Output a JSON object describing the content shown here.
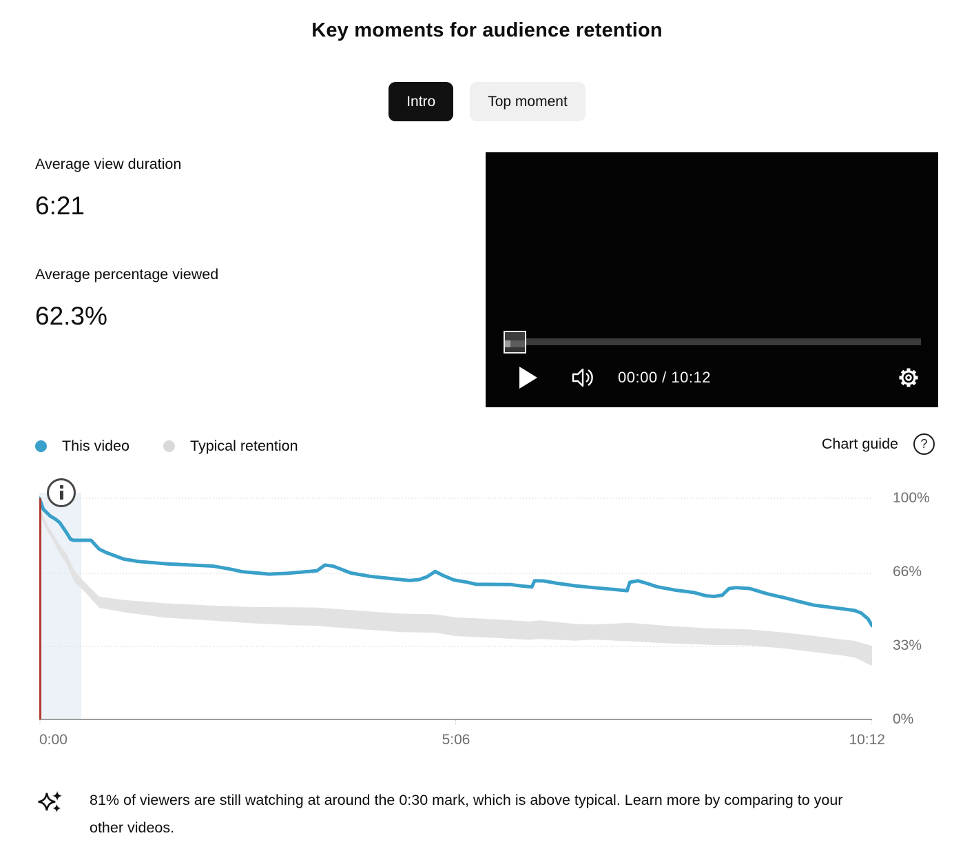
{
  "page": {
    "title": "Key moments for audience retention"
  },
  "chips": {
    "intro": "Intro",
    "top_moment": "Top moment"
  },
  "stats": {
    "duration_label": "Average view duration",
    "duration_value": "6:21",
    "percent_label": "Average percentage viewed",
    "percent_value": "62.3%"
  },
  "player": {
    "time": "00:00 / 10:12"
  },
  "legend": {
    "this_video": "This video",
    "typical": "Typical retention",
    "chart_guide": "Chart guide",
    "help_glyph": "?"
  },
  "insight": {
    "text": "81% of viewers are still watching at around the 0:30 mark, which is above typical. Learn more by comparing to your other videos."
  },
  "colors": {
    "accent_blue": "#38a0c9",
    "band_gray": "#e2e2e2",
    "marker_red": "#b0392e",
    "region_blue": "#ecf2f7",
    "gridline": "#e0e0e0",
    "axis": "#9c9c9c"
  },
  "chart_data": {
    "type": "line",
    "title": "Audience retention",
    "x_axis": {
      "ticks": [
        "0:00",
        "5:06",
        "10:12"
      ],
      "tick_seconds": [
        0,
        306,
        612
      ],
      "range_seconds": [
        0,
        612
      ]
    },
    "y_axis": {
      "ticks": [
        "100%",
        "66%",
        "33%",
        "0%"
      ],
      "grid_percents": [
        100,
        66,
        33
      ],
      "range": [
        0,
        100
      ]
    },
    "grid": true,
    "legend_position": "top-left",
    "annotations": {
      "intro_marker_time": 0,
      "intro_shaded_region_seconds": [
        0,
        31
      ],
      "callout": "81% retention at 0:30"
    },
    "series": [
      {
        "name": "This video",
        "color": "#38a0c9",
        "points": [
          [
            0,
            100
          ],
          [
            3,
            95
          ],
          [
            8,
            92
          ],
          [
            12,
            90.5
          ],
          [
            15,
            89
          ],
          [
            20,
            84.5
          ],
          [
            23,
            81.5
          ],
          [
            25,
            81
          ],
          [
            38,
            81
          ],
          [
            44,
            77
          ],
          [
            49,
            75.5
          ],
          [
            62,
            72.5
          ],
          [
            73,
            71.4
          ],
          [
            95,
            70.3
          ],
          [
            112,
            69.8
          ],
          [
            128,
            69.3
          ],
          [
            140,
            68
          ],
          [
            149,
            66.8
          ],
          [
            160,
            66.2
          ],
          [
            169,
            65.7
          ],
          [
            183,
            66.1
          ],
          [
            204,
            67.2
          ],
          [
            210,
            69.8
          ],
          [
            216,
            69.3
          ],
          [
            229,
            66.2
          ],
          [
            243,
            64.7
          ],
          [
            260,
            63.6
          ],
          [
            272,
            62.8
          ],
          [
            279,
            63.2
          ],
          [
            285,
            64.5
          ],
          [
            291,
            66.9
          ],
          [
            297,
            65
          ],
          [
            305,
            63
          ],
          [
            314,
            62.1
          ],
          [
            321,
            61.1
          ],
          [
            346,
            61
          ],
          [
            355,
            60.3
          ],
          [
            362,
            59.9
          ],
          [
            364,
            62.7
          ],
          [
            371,
            62.6
          ],
          [
            380,
            61.6
          ],
          [
            394,
            60.4
          ],
          [
            407,
            59.6
          ],
          [
            420,
            58.9
          ],
          [
            432,
            58.2
          ],
          [
            434,
            62
          ],
          [
            440,
            62.7
          ],
          [
            447,
            61.4
          ],
          [
            454,
            60
          ],
          [
            468,
            58.4
          ],
          [
            481,
            57.4
          ],
          [
            490,
            55.9
          ],
          [
            496,
            55.6
          ],
          [
            502,
            56.2
          ],
          [
            507,
            59.2
          ],
          [
            512,
            59.6
          ],
          [
            522,
            59.2
          ],
          [
            535,
            56.8
          ],
          [
            549,
            54.8
          ],
          [
            559,
            53.2
          ],
          [
            569,
            51.7
          ],
          [
            579,
            50.9
          ],
          [
            589,
            50.1
          ],
          [
            599,
            49.3
          ],
          [
            604,
            48.1
          ],
          [
            609,
            45.5
          ],
          [
            612,
            42.4
          ]
        ]
      },
      {
        "name": "Typical retention",
        "color": "#e2e2e2",
        "band": [
          [
            0,
            96,
            93
          ],
          [
            3,
            92,
            89
          ],
          [
            6,
            88,
            85
          ],
          [
            10,
            84,
            81
          ],
          [
            15,
            79,
            75
          ],
          [
            20,
            75,
            70.5
          ],
          [
            26,
            67,
            62
          ],
          [
            33,
            62.3,
            58
          ],
          [
            44,
            55.5,
            50.5
          ],
          [
            62,
            54,
            48.5
          ],
          [
            93,
            52.5,
            46
          ],
          [
            125,
            51.5,
            44.8
          ],
          [
            156,
            50.8,
            43.5
          ],
          [
            187,
            50.7,
            42.6
          ],
          [
            204,
            50.6,
            42.3
          ],
          [
            235,
            49.2,
            40.8
          ],
          [
            266,
            47.8,
            39.5
          ],
          [
            291,
            47.5,
            39.2
          ],
          [
            306,
            46.2,
            37.7
          ],
          [
            337,
            45.2,
            36.8
          ],
          [
            360,
            44.3,
            36
          ],
          [
            368,
            44.8,
            36.4
          ],
          [
            394,
            43.2,
            35.6
          ],
          [
            407,
            42.9,
            36.1
          ],
          [
            434,
            43.7,
            35.3
          ],
          [
            463,
            42.2,
            34.4
          ],
          [
            493,
            41.2,
            33.7
          ],
          [
            522,
            40.7,
            33.5
          ],
          [
            549,
            39.2,
            32
          ],
          [
            569,
            37.8,
            30.5
          ],
          [
            589,
            36.2,
            29
          ],
          [
            599,
            35.6,
            28
          ],
          [
            604,
            34.6,
            26.6
          ],
          [
            609,
            33.8,
            25
          ],
          [
            612,
            33.2,
            24.4
          ]
        ]
      }
    ]
  }
}
